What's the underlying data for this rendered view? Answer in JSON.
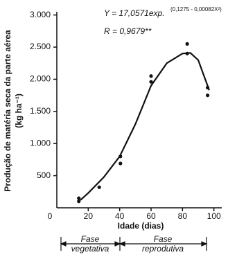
{
  "chart_data": {
    "type": "scatter",
    "equation": "Y = 17,0571exp.",
    "equation_exponent": "(0,1275 - 0,00082X²)",
    "r_text": "R = 0,9679**",
    "y_label": "Produção de matéria seca da parte aérea",
    "y_label_unit": "(kg ha⁻¹)",
    "x_label": "Idade (dias)",
    "phases": [
      {
        "line1": "Fase",
        "line2": "vegetativa"
      },
      {
        "line1": "Fase",
        "line2": "reprodutiva"
      }
    ],
    "color": "#111111",
    "points": {
      "x": [
        14,
        14,
        27,
        40.5,
        40.5,
        60,
        60,
        83,
        83,
        96,
        96
      ],
      "y": [
        150,
        100,
        320,
        800,
        690,
        2050,
        1960,
        2550,
        2400,
        1870,
        1750
      ]
    },
    "curve": {
      "x": [
        15,
        20,
        30,
        40,
        50,
        60,
        70,
        80,
        85,
        90,
        97
      ],
      "y": [
        120,
        230,
        480,
        800,
        1300,
        1900,
        2250,
        2400,
        2410,
        2300,
        1830
      ]
    },
    "xlim": [
      0,
      105
    ],
    "ylim": [
      0,
      3050
    ],
    "xticks": [
      0,
      20,
      40,
      60,
      80,
      100
    ],
    "yticks": [
      500,
      {
        "value": 1000,
        "label": "1.000"
      },
      {
        "value": 1500,
        "label": "1.500"
      },
      {
        "value": 2000,
        "label": "2.000"
      },
      {
        "value": 2500,
        "label": "2.500"
      },
      {
        "value": 3000,
        "label": "3.000"
      }
    ]
  }
}
